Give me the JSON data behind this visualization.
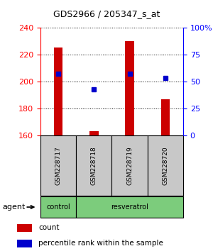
{
  "title": "GDS2966 / 205347_s_at",
  "samples": [
    "GSM228717",
    "GSM228718",
    "GSM228719",
    "GSM228720"
  ],
  "count_values": [
    225,
    163,
    230,
    187
  ],
  "percentile_values": [
    57,
    43,
    57,
    53
  ],
  "left_ylim": [
    160,
    240
  ],
  "right_ylim": [
    0,
    100
  ],
  "left_yticks": [
    160,
    180,
    200,
    220,
    240
  ],
  "right_yticks": [
    0,
    25,
    50,
    75,
    100
  ],
  "right_yticklabels": [
    "0",
    "25",
    "50",
    "75",
    "100%"
  ],
  "bar_color": "#cc0000",
  "dot_color": "#0000cc",
  "bar_base": 160,
  "group_defs": [
    [
      0,
      0,
      "control"
    ],
    [
      1,
      3,
      "resveratrol"
    ]
  ],
  "group_color": "#7ccc7c",
  "agent_label": "agent",
  "background_color": "#ffffff",
  "sample_box_color": "#c8c8c8",
  "legend_count_label": "count",
  "legend_pct_label": "percentile rank within the sample",
  "bar_width": 0.25
}
